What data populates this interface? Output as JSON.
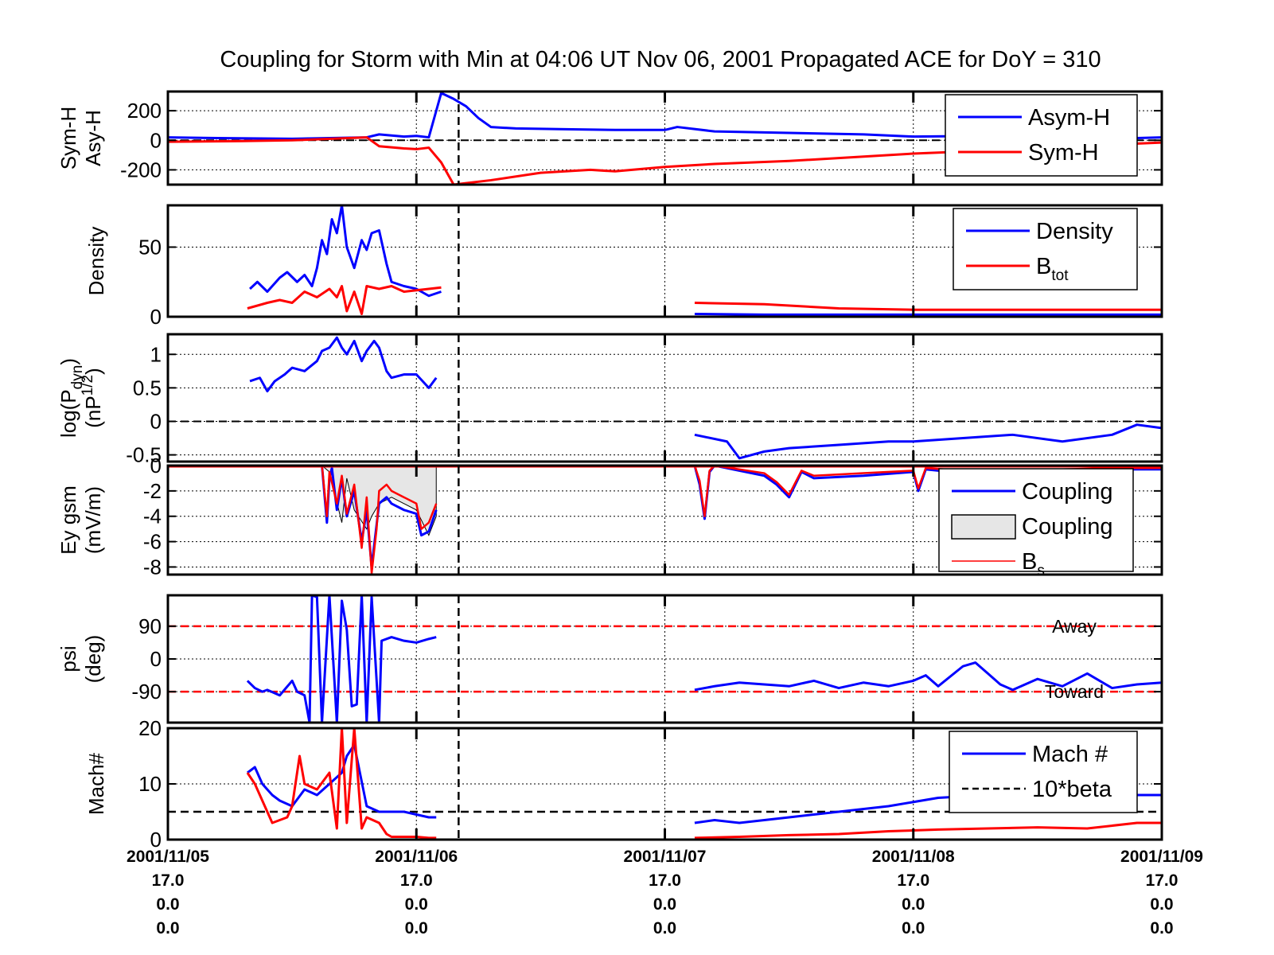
{
  "title": "Coupling for Storm with Min at 04:06 UT Nov 06, 2001  Propagated ACE for DoY = 310",
  "colors": {
    "blue": "#0000ff",
    "red": "#ff0000",
    "black": "#000000",
    "fill_gray": "#e6e6e6"
  },
  "x_axis": {
    "range": [
      "2001/11/05 00:00",
      "2001/11/09 00:00"
    ],
    "ticks": [
      {
        "date": "2001/11/05",
        "l2": "17.0",
        "l3": "0.0",
        "l4": "0.0"
      },
      {
        "date": "2001/11/06",
        "l2": "17.0",
        "l3": "0.0",
        "l4": "0.0"
      },
      {
        "date": "2001/11/07",
        "l2": "17.0",
        "l3": "0.0",
        "l4": "0.0"
      },
      {
        "date": "2001/11/08",
        "l2": "17.0",
        "l3": "0.0",
        "l4": "0.0"
      },
      {
        "date": "2001/11/09",
        "l2": "17.0",
        "l3": "0.0",
        "l4": "0.0"
      }
    ],
    "storm_min_marker_day": 1.17
  },
  "chart_data": [
    {
      "id": "symh",
      "type": "line",
      "ylabel_lines": [
        "Sym-H",
        "Asy-H"
      ],
      "ylim": [
        -300,
        330
      ],
      "yticks": [
        {
          "v": 200,
          "label": "200"
        },
        {
          "v": 0,
          "label": "0"
        },
        {
          "v": -200,
          "label": "-200"
        }
      ],
      "zero_line": true,
      "legend": [
        {
          "label": "Asym-H",
          "sub": "",
          "style": "blue"
        },
        {
          "label": "Sym-H",
          "sub": "",
          "style": "red"
        }
      ],
      "series": [
        {
          "name": "Asym-H",
          "color": "blue",
          "x": [
            0,
            0.2,
            0.5,
            0.8,
            0.85,
            0.95,
            1.0,
            1.05,
            1.08,
            1.1,
            1.15,
            1.2,
            1.25,
            1.3,
            1.4,
            1.6,
            1.8,
            2.0,
            2.05,
            2.2,
            2.5,
            2.8,
            3.0,
            3.3,
            3.6,
            3.8,
            4.0
          ],
          "y": [
            20,
            15,
            10,
            20,
            40,
            25,
            30,
            20,
            200,
            320,
            280,
            230,
            150,
            90,
            80,
            75,
            70,
            70,
            90,
            60,
            50,
            40,
            25,
            30,
            25,
            10,
            20
          ]
        },
        {
          "name": "Sym-H",
          "color": "red",
          "x": [
            0,
            0.3,
            0.5,
            0.8,
            0.85,
            0.95,
            1.0,
            1.05,
            1.1,
            1.15,
            1.2,
            1.3,
            1.5,
            1.7,
            1.8,
            2.0,
            2.2,
            2.5,
            2.8,
            3.0,
            3.3,
            3.5,
            4.0
          ],
          "y": [
            -10,
            -5,
            0,
            20,
            -40,
            -55,
            -60,
            -50,
            -150,
            -300,
            -290,
            -270,
            -220,
            -200,
            -210,
            -180,
            -160,
            -140,
            -110,
            -90,
            -70,
            -50,
            -15
          ]
        }
      ]
    },
    {
      "id": "density",
      "type": "line",
      "ylabel_lines": [
        "Density"
      ],
      "ylim": [
        0,
        80
      ],
      "yticks": [
        {
          "v": 50,
          "label": "50"
        },
        {
          "v": 0,
          "label": "0"
        }
      ],
      "zero_line": false,
      "legend": [
        {
          "label": "Density",
          "sub": "",
          "style": "blue"
        },
        {
          "label": "B",
          "sub": "tot",
          "style": "red"
        }
      ],
      "series": [
        {
          "name": "Density",
          "color": "blue",
          "x": [
            0.33,
            0.36,
            0.4,
            0.45,
            0.48,
            0.52,
            0.55,
            0.58,
            0.6,
            0.62,
            0.64,
            0.66,
            0.68,
            0.7,
            0.72,
            0.75,
            0.78,
            0.8,
            0.82,
            0.85,
            0.88,
            0.9,
            0.95,
            1.0,
            1.05,
            1.1
          ],
          "y": [
            20,
            25,
            18,
            28,
            32,
            25,
            30,
            22,
            35,
            55,
            45,
            70,
            60,
            80,
            50,
            35,
            55,
            48,
            60,
            62,
            38,
            25,
            22,
            20,
            15,
            18
          ]
        },
        {
          "name": "Density",
          "color": "blue",
          "x": [
            2.12,
            2.4,
            2.7,
            3.0,
            3.3,
            3.6,
            4.0
          ],
          "y": [
            2,
            1.5,
            1.5,
            1.5,
            1.5,
            1.5,
            1.5
          ]
        },
        {
          "name": "B",
          "color": "red",
          "x": [
            0.32,
            0.4,
            0.45,
            0.5,
            0.55,
            0.6,
            0.65,
            0.68,
            0.7,
            0.72,
            0.75,
            0.78,
            0.8,
            0.85,
            0.9,
            0.95,
            1.0,
            1.05,
            1.1
          ],
          "y": [
            6,
            10,
            12,
            10,
            18,
            14,
            20,
            14,
            22,
            4,
            18,
            2,
            22,
            20,
            22,
            18,
            19,
            20,
            21
          ]
        },
        {
          "name": "B",
          "color": "red",
          "x": [
            2.12,
            2.4,
            2.7,
            3.0,
            3.3,
            3.6,
            4.0
          ],
          "y": [
            10,
            9,
            6,
            5,
            5,
            5,
            5
          ]
        }
      ]
    },
    {
      "id": "pdyn",
      "type": "line",
      "ylabel_lines": [
        "log(P",
        "(nP"
      ],
      "ylabel_subs": [
        "dyn",
        "1/2"
      ],
      "ylim": [
        -0.6,
        1.3
      ],
      "yticks": [
        {
          "v": 1,
          "label": "1"
        },
        {
          "v": 0.5,
          "label": "0.5"
        },
        {
          "v": 0,
          "label": "0"
        },
        {
          "v": -0.5,
          "label": "-0.5"
        }
      ],
      "zero_line": true,
      "series": [
        {
          "name": "log Pdyn",
          "color": "blue",
          "x": [
            0.33,
            0.37,
            0.4,
            0.43,
            0.47,
            0.5,
            0.55,
            0.6,
            0.62,
            0.65,
            0.68,
            0.7,
            0.72,
            0.75,
            0.78,
            0.8,
            0.83,
            0.85,
            0.88,
            0.9,
            0.95,
            1.0,
            1.05,
            1.08
          ],
          "y": [
            0.6,
            0.65,
            0.45,
            0.6,
            0.7,
            0.8,
            0.75,
            0.9,
            1.05,
            1.1,
            1.25,
            1.1,
            1.0,
            1.2,
            0.9,
            1.05,
            1.2,
            1.1,
            0.75,
            0.65,
            0.7,
            0.7,
            0.5,
            0.65
          ]
        },
        {
          "name": "log Pdyn",
          "color": "blue",
          "x": [
            2.12,
            2.25,
            2.3,
            2.4,
            2.5,
            2.7,
            2.9,
            3.0,
            3.2,
            3.4,
            3.6,
            3.8,
            3.9,
            4.0
          ],
          "y": [
            -0.2,
            -0.3,
            -0.55,
            -0.45,
            -0.4,
            -0.35,
            -0.3,
            -0.3,
            -0.25,
            -0.2,
            -0.3,
            -0.2,
            -0.05,
            -0.1
          ]
        }
      ]
    },
    {
      "id": "eygsm",
      "type": "area",
      "ylabel_lines": [
        "Ey gsm",
        "(mV/m)"
      ],
      "ylim": [
        -8.6,
        0
      ],
      "yticks": [
        {
          "v": 0,
          "label": "0"
        },
        {
          "v": -2,
          "label": "-2"
        },
        {
          "v": -4,
          "label": "-4"
        },
        {
          "v": -6,
          "label": "-6"
        },
        {
          "v": -8,
          "label": "-8"
        }
      ],
      "zero_line": false,
      "legend": [
        {
          "label": "Coupling",
          "sub": "",
          "style": "blue"
        },
        {
          "label": "Coupling",
          "sub": "",
          "style": "fill"
        },
        {
          "label": "B",
          "sub": "s",
          "style": "redthin"
        }
      ],
      "series": [
        {
          "name": "Coupling fill",
          "color": "fill",
          "x": [
            0.62,
            0.65,
            0.7,
            0.72,
            0.75,
            0.8,
            0.82,
            0.85,
            0.9,
            0.95,
            1.0,
            1.05,
            1.08
          ],
          "y": [
            0,
            -0.5,
            -4.5,
            -1.0,
            -3.5,
            -5.0,
            -4.0,
            -3.0,
            -2.5,
            -3.0,
            -3.5,
            -5.5,
            -4.0
          ]
        },
        {
          "name": "Coupling",
          "color": "blue",
          "x": [
            0.62,
            0.64,
            0.65,
            0.66,
            0.68,
            0.7,
            0.72,
            0.75,
            0.78,
            0.8,
            0.82,
            0.85,
            0.88,
            0.9,
            0.95,
            1.0,
            1.02,
            1.05,
            1.08
          ],
          "y": [
            0,
            -4.5,
            -1.0,
            -0.2,
            -3.5,
            -1.0,
            -4.0,
            -2.0,
            -6.0,
            -3.5,
            -8.0,
            -3.0,
            -2.5,
            -3.0,
            -3.5,
            -3.8,
            -5.5,
            -5.2,
            -3.5
          ]
        },
        {
          "name": "Bs",
          "color": "red",
          "x": [
            0.62,
            0.64,
            0.65,
            0.68,
            0.7,
            0.72,
            0.75,
            0.78,
            0.8,
            0.82,
            0.84,
            0.85,
            0.88,
            0.9,
            0.95,
            1.0,
            1.02,
            1.05,
            1.08
          ],
          "y": [
            0,
            -4.0,
            -0.5,
            -3.0,
            -0.8,
            -3.8,
            -1.5,
            -6.5,
            -2.5,
            -8.5,
            -5.0,
            -2.0,
            -1.5,
            -2.0,
            -2.5,
            -3.0,
            -5.0,
            -4.5,
            -3.0
          ]
        },
        {
          "name": "Coupling",
          "color": "blue",
          "x": [
            2.12,
            2.14,
            2.16,
            2.18,
            2.2,
            2.4,
            2.45,
            2.5,
            2.55,
            2.6,
            2.8,
            3.0,
            3.02,
            3.05,
            3.2,
            3.4,
            3.6,
            3.8,
            4.0
          ],
          "y": [
            0,
            -1.5,
            -4.2,
            -0.5,
            0,
            -0.8,
            -1.5,
            -2.5,
            -0.5,
            -1.0,
            -0.8,
            -0.5,
            -2.0,
            -0.3,
            -0.6,
            -0.5,
            -0.4,
            -0.3,
            -0.3
          ]
        },
        {
          "name": "Bs",
          "color": "red",
          "x": [
            2.12,
            2.14,
            2.16,
            2.18,
            2.2,
            2.4,
            2.45,
            2.5,
            2.55,
            2.6,
            2.8,
            3.0,
            3.02,
            3.05,
            3.2,
            3.4,
            3.6,
            3.8,
            4.0
          ],
          "y": [
            0,
            -1.2,
            -4.0,
            -0.4,
            0,
            -0.6,
            -1.3,
            -2.3,
            -0.4,
            -0.8,
            -0.6,
            -0.4,
            -1.8,
            -0.2,
            -0.4,
            -0.4,
            -0.3,
            -0.2,
            -0.2
          ]
        },
        {
          "name": "Bs zero",
          "color": "red",
          "x": [
            0,
            4.0
          ],
          "y": [
            0,
            0
          ]
        }
      ]
    },
    {
      "id": "psi",
      "type": "line",
      "ylabel_lines": [
        "psi",
        "(deg)"
      ],
      "ylim": [
        -175,
        175
      ],
      "yticks": [
        {
          "v": 90,
          "label": "90"
        },
        {
          "v": 0,
          "label": "0"
        },
        {
          "v": -90,
          "label": "-90"
        }
      ],
      "zero_line": false,
      "ref_lines": [
        {
          "v": 90,
          "label": "Away"
        },
        {
          "v": -90,
          "label": "Toward"
        }
      ],
      "series": [
        {
          "name": "psi",
          "color": "blue",
          "x": [
            0.32,
            0.35,
            0.38,
            0.4,
            0.45,
            0.5,
            0.52,
            0.55,
            0.57,
            0.58,
            0.6,
            0.62,
            0.65,
            0.68,
            0.7,
            0.72,
            0.74,
            0.76,
            0.78,
            0.8,
            0.82,
            0.85,
            0.86,
            0.9,
            0.95,
            1.0,
            1.05,
            1.08
          ],
          "y": [
            -60,
            -80,
            -90,
            -85,
            -100,
            -60,
            -90,
            -100,
            -175,
            175,
            170,
            -175,
            175,
            -175,
            160,
            80,
            -130,
            -125,
            175,
            -175,
            170,
            -175,
            50,
            60,
            50,
            45,
            55,
            60
          ]
        },
        {
          "name": "psi",
          "color": "blue",
          "x": [
            2.12,
            2.2,
            2.3,
            2.4,
            2.5,
            2.6,
            2.7,
            2.8,
            2.9,
            3.0,
            3.05,
            3.1,
            3.2,
            3.25,
            3.3,
            3.35,
            3.4,
            3.5,
            3.6,
            3.7,
            3.8,
            3.9,
            4.0
          ],
          "y": [
            -85,
            -75,
            -65,
            -70,
            -75,
            -60,
            -80,
            -65,
            -75,
            -60,
            -45,
            -75,
            -20,
            -10,
            -40,
            -70,
            -85,
            -55,
            -75,
            -40,
            -80,
            -70,
            -65
          ]
        }
      ]
    },
    {
      "id": "mach",
      "type": "line",
      "ylabel_lines": [
        "Mach#"
      ],
      "ylim": [
        0,
        20
      ],
      "yticks": [
        {
          "v": 20,
          "label": "20"
        },
        {
          "v": 10,
          "label": "10"
        },
        {
          "v": 0,
          "label": "0"
        }
      ],
      "zero_line": false,
      "dashed_level": 5,
      "legend": [
        {
          "label": "Mach #",
          "sub": "",
          "style": "blue"
        },
        {
          "label": "10*beta",
          "sub": "",
          "style": "blackdash"
        }
      ],
      "series": [
        {
          "name": "Mach #",
          "color": "blue",
          "x": [
            0.32,
            0.35,
            0.38,
            0.42,
            0.45,
            0.5,
            0.55,
            0.6,
            0.65,
            0.7,
            0.72,
            0.75,
            0.8,
            0.85,
            0.9,
            0.95,
            1.0,
            1.05,
            1.08
          ],
          "y": [
            12,
            13,
            10,
            8,
            7,
            6,
            9,
            8,
            10,
            12,
            15,
            17,
            6,
            5,
            5,
            5,
            4.5,
            4,
            4
          ]
        },
        {
          "name": "Mach #",
          "color": "blue",
          "x": [
            2.12,
            2.2,
            2.3,
            2.5,
            2.7,
            2.9,
            3.1,
            3.3,
            3.5,
            3.7,
            4.0
          ],
          "y": [
            3,
            3.5,
            3,
            4,
            5,
            6,
            7.5,
            8,
            8.5,
            8,
            8
          ]
        },
        {
          "name": "10*beta",
          "color": "red",
          "x": [
            0.32,
            0.35,
            0.38,
            0.42,
            0.48,
            0.5,
            0.53,
            0.55,
            0.6,
            0.65,
            0.68,
            0.7,
            0.72,
            0.75,
            0.78,
            0.8,
            0.85,
            0.88,
            0.9,
            0.95,
            1.0,
            1.05,
            1.08
          ],
          "y": [
            12,
            10,
            7,
            3,
            4,
            6,
            15,
            10,
            9,
            12,
            2,
            20,
            3,
            20,
            2,
            4,
            3,
            1,
            0.5,
            0.5,
            0.5,
            0.3,
            0.3
          ]
        },
        {
          "name": "10*beta",
          "color": "red",
          "x": [
            2.12,
            2.3,
            2.5,
            2.7,
            2.9,
            3.1,
            3.3,
            3.5,
            3.7,
            3.9,
            4.0
          ],
          "y": [
            0.3,
            0.5,
            0.8,
            1.0,
            1.5,
            1.8,
            2.0,
            2.2,
            2.0,
            3.0,
            3.0
          ]
        }
      ]
    }
  ]
}
